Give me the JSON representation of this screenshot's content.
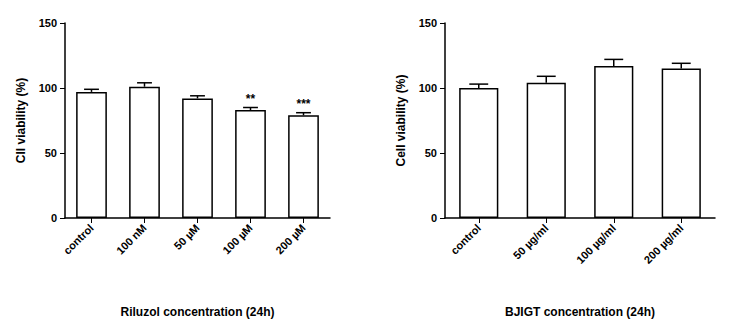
{
  "chart_data": [
    {
      "type": "bar",
      "x_label": "Riluzol concentration (24h)",
      "y_label": "Cll viability (%)",
      "categories": [
        "control",
        "100 nM",
        "50 µM",
        "100 µM",
        "200 µM"
      ],
      "values": [
        97,
        101,
        92,
        83,
        79
      ],
      "errors": [
        2,
        3,
        2,
        2,
        2
      ],
      "annotations": [
        {
          "category": "100 µM",
          "text": "**"
        },
        {
          "category": "200 µM",
          "text": "***"
        }
      ],
      "color": "#ffffff",
      "ylim": [
        0,
        150
      ],
      "yticks": [
        0,
        50,
        100,
        150
      ],
      "grid": false
    },
    {
      "type": "bar",
      "x_label": "BJIGT concentration (24h)",
      "y_label": "Cell viability (%)",
      "categories": [
        "control",
        "50 µg/ml",
        "100 µg/ml",
        "200 µg/ml"
      ],
      "values": [
        100,
        104,
        117,
        115
      ],
      "errors": [
        3,
        5,
        5,
        4
      ],
      "color": "#ffffff",
      "ylim": [
        0,
        150
      ],
      "yticks": [
        0,
        50,
        100,
        150
      ],
      "grid": false
    }
  ]
}
